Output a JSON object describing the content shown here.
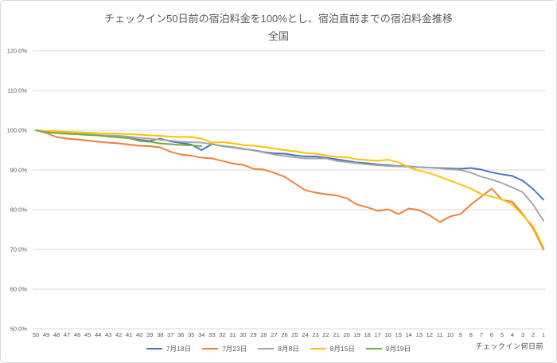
{
  "chart_data": {
    "type": "line",
    "title": "チェックイン50日前の宿泊料金を100%とし、宿泊直前までの宿泊料金推移",
    "subtitle": "全国",
    "xlabel": "チェックイン何日前",
    "grid": true,
    "legend_position": "bottom",
    "ylim": [
      50,
      120
    ],
    "yticks": [
      {
        "value": 120,
        "label": "120.0%"
      },
      {
        "value": 110,
        "label": "110.0%"
      },
      {
        "value": 100,
        "label": "100.0%"
      },
      {
        "value": 90,
        "label": "90.0%"
      },
      {
        "value": 80,
        "label": "80.0%"
      },
      {
        "value": 70,
        "label": "70.0%"
      },
      {
        "value": 60,
        "label": "60.0%"
      },
      {
        "value": 50,
        "label": "50.0%"
      }
    ],
    "x": [
      50,
      49,
      48,
      47,
      46,
      45,
      44,
      43,
      42,
      41,
      40,
      39,
      38,
      37,
      36,
      35,
      34,
      33,
      32,
      31,
      30,
      29,
      28,
      27,
      26,
      25,
      24,
      23,
      22,
      21,
      20,
      19,
      18,
      17,
      16,
      15,
      14,
      13,
      12,
      11,
      10,
      9,
      8,
      7,
      6,
      5,
      4,
      3,
      2,
      1
    ],
    "series": [
      {
        "name": "7月18日",
        "color": "#4472C4",
        "values": [
          100.0,
          99.6,
          99.3,
          99.2,
          99.0,
          98.9,
          98.8,
          98.6,
          98.5,
          98.0,
          97.6,
          97.3,
          97.9,
          97.2,
          96.8,
          96.4,
          95.0,
          96.5,
          96.0,
          95.7,
          95.3,
          95.0,
          94.5,
          94.2,
          94.1,
          93.7,
          93.4,
          93.4,
          93.1,
          92.7,
          92.3,
          91.9,
          91.7,
          91.4,
          91.2,
          91.0,
          90.9,
          90.7,
          90.6,
          90.5,
          90.4,
          90.3,
          90.5,
          90.1,
          89.4,
          88.9,
          88.5,
          87.3,
          85.2,
          82.5
        ]
      },
      {
        "name": "7月23日",
        "color": "#ED7D31",
        "values": [
          100.0,
          99.3,
          98.3,
          97.9,
          97.7,
          97.4,
          97.1,
          96.9,
          96.7,
          96.4,
          96.1,
          96.0,
          95.7,
          94.6,
          93.9,
          93.6,
          93.1,
          92.9,
          92.3,
          91.6,
          91.3,
          90.3,
          90.1,
          89.3,
          88.3,
          86.6,
          84.9,
          84.3,
          83.9,
          83.6,
          82.9,
          81.3,
          80.6,
          79.7,
          80.1,
          78.9,
          80.3,
          79.9,
          78.6,
          76.9,
          78.3,
          78.9,
          81.3,
          83.3,
          85.3,
          82.5,
          82.0,
          78.9,
          75.3,
          70.0
        ]
      },
      {
        "name": "8月8日",
        "color": "#A5A5A5",
        "values": [
          100.0,
          99.7,
          99.4,
          99.2,
          99.1,
          99.0,
          98.8,
          98.7,
          98.6,
          98.4,
          98.1,
          97.9,
          97.6,
          97.4,
          97.1,
          97.0,
          96.9,
          96.5,
          96.1,
          95.8,
          95.4,
          94.9,
          94.4,
          93.9,
          93.5,
          93.2,
          92.9,
          92.9,
          92.9,
          92.3,
          92.0,
          91.7,
          91.4,
          91.2,
          91.0,
          90.9,
          90.8,
          90.7,
          90.6,
          90.4,
          90.2,
          90.0,
          89.3,
          88.3,
          87.6,
          86.7,
          85.6,
          84.4,
          81.3,
          77.2
        ]
      },
      {
        "name": "8月15日",
        "color": "#FFC000",
        "values": [
          100.0,
          99.8,
          99.7,
          99.6,
          99.5,
          99.4,
          99.3,
          99.2,
          99.1,
          99.0,
          98.9,
          98.7,
          98.6,
          98.4,
          98.3,
          98.3,
          97.9,
          96.9,
          97.0,
          96.7,
          96.3,
          96.1,
          95.8,
          95.4,
          95.0,
          94.7,
          94.3,
          94.1,
          93.7,
          93.3,
          93.2,
          92.7,
          92.5,
          92.3,
          92.6,
          91.9,
          90.7,
          89.8,
          89.2,
          88.3,
          87.3,
          86.3,
          85.3,
          83.9,
          83.3,
          82.6,
          81.3,
          78.6,
          75.8,
          70.5
        ]
      },
      {
        "name": "9月19日",
        "color": "#70AD47",
        "values": [
          100.0,
          99.5,
          99.3,
          99.1,
          99.0,
          98.8,
          98.7,
          98.4,
          98.2,
          98.0,
          97.3,
          97.1,
          96.7,
          96.5,
          96.3,
          96.2,
          96.0,
          null,
          null,
          null,
          null,
          null,
          null,
          null,
          null,
          null,
          null,
          null,
          null,
          null,
          null,
          null,
          null,
          null,
          null,
          null,
          null,
          null,
          null,
          null,
          null,
          null,
          null,
          null,
          null,
          null,
          null,
          null,
          null,
          null
        ]
      }
    ]
  }
}
